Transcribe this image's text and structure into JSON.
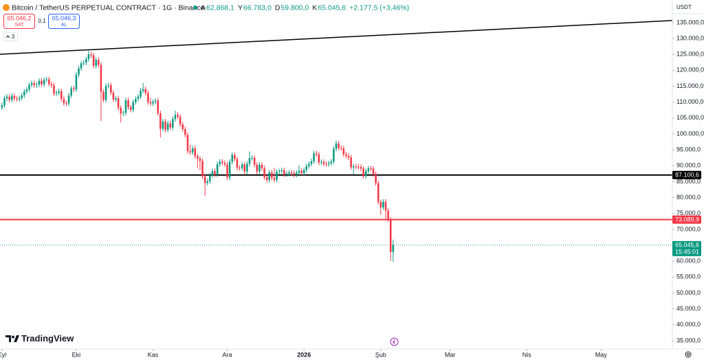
{
  "header": {
    "symbol": "Bitcoin / TetherUS PERPETUAL CONTRACT · 1G · Binance",
    "ohlc": [
      {
        "label": "A",
        "value": "62.868,1"
      },
      {
        "label": "Y",
        "value": "66.783,0"
      },
      {
        "label": "D",
        "value": "59.800,0"
      },
      {
        "label": "K",
        "value": "65.045,6"
      }
    ],
    "change": "+2.177,5 (+3,46%)",
    "sell": {
      "price": "65.046,2",
      "label": "SAT"
    },
    "spread": "0,1",
    "buy": {
      "price": "65.046,3",
      "label": "AL"
    },
    "indicators_count": "3",
    "currency": "USDT",
    "logo": "TradingView"
  },
  "chart_data": {
    "type": "candlestick",
    "up_color": "#089981",
    "down_color": "#f23645",
    "xlim": [
      -0.8,
      270.8
    ],
    "xticks": [
      {
        "value": 0,
        "label": "Eyl"
      },
      {
        "value": 30,
        "label": "Eki"
      },
      {
        "value": 61,
        "label": "Kas"
      },
      {
        "value": 91,
        "label": "Ara"
      },
      {
        "value": 122,
        "label": "2026"
      },
      {
        "value": 153,
        "label": "Şub"
      },
      {
        "value": 181,
        "label": "Mar"
      },
      {
        "value": 212,
        "label": "Nis"
      },
      {
        "value": 242,
        "label": "May"
      }
    ],
    "ylim": [
      32400,
      142100
    ],
    "yticks": [
      {
        "value": 135000,
        "label": "135.000,0"
      },
      {
        "value": 130000,
        "label": "130.000,0"
      },
      {
        "value": 125000,
        "label": "125.000,0"
      },
      {
        "value": 120000,
        "label": "120.000,0"
      },
      {
        "value": 115000,
        "label": "115.000,0"
      },
      {
        "value": 110000,
        "label": "110.000,0"
      },
      {
        "value": 105000,
        "label": "105.000,0"
      },
      {
        "value": 100000,
        "label": "100.000,0"
      },
      {
        "value": 95000,
        "label": "95.000,0"
      },
      {
        "value": 90000,
        "label": "90.000,0"
      },
      {
        "value": 85000,
        "label": "85.000,0"
      },
      {
        "value": 80000,
        "label": "80.000,0"
      },
      {
        "value": 75000,
        "label": "75.000,0"
      },
      {
        "value": 70000,
        "label": "70.000,0"
      },
      {
        "value": 60000,
        "label": "60.000,0"
      },
      {
        "value": 55000,
        "label": "55.000,0"
      },
      {
        "value": 50000,
        "label": "50.000,0"
      },
      {
        "value": 45000,
        "label": "45.000,0"
      },
      {
        "value": 40000,
        "label": "40.000,0"
      },
      {
        "value": 35000,
        "label": "35.000,0"
      }
    ],
    "grid": false,
    "open": [
      108300,
      109000,
      111200,
      111700,
      110700,
      112000,
      111100,
      110900,
      111300,
      112100,
      113300,
      114000,
      115400,
      116000,
      115300,
      115500,
      116700,
      115600,
      117000,
      117200,
      115700,
      115300,
      112700,
      112900,
      113400,
      111000,
      109700,
      109600,
      112100,
      114300,
      114000,
      118600,
      120600,
      122200,
      122400,
      123500,
      125000,
      124700,
      121400,
      123300,
      121700,
      113200,
      110700,
      115100,
      115300,
      113000,
      110800,
      111200,
      108200,
      106400,
      106600,
      110600,
      108400,
      107600,
      110000,
      111000,
      111700,
      113600,
      114100,
      112900,
      110000,
      109600,
      110100,
      110500,
      106500,
      101600,
      103900,
      101300,
      103300,
      102000,
      104700,
      106000,
      105400,
      103000,
      101500,
      99700,
      94600,
      94200,
      95500,
      93000,
      92200,
      91500,
      86600,
      84600,
      85100,
      87000,
      88300,
      87300,
      90500,
      91300,
      90900,
      90400,
      86300,
      91300,
      93400,
      92100,
      89400,
      89300,
      90400,
      88200,
      90600,
      92400,
      92500,
      90300,
      88200,
      90300,
      89200,
      86400,
      85500,
      87900,
      86200,
      85600,
      88100,
      88300,
      88600,
      87300,
      87500,
      87900,
      87700,
      87200,
      87800,
      88400,
      87700,
      88700,
      89900,
      90600,
      91400,
      93900,
      93600,
      91000,
      91200,
      90600,
      90500,
      90800,
      91300,
      95300,
      97000,
      95600,
      95500,
      93600,
      93100,
      92600,
      89500,
      89800,
      89700,
      89600,
      89100,
      86700,
      88300,
      89200,
      89100,
      87400,
      84500,
      78600,
      76900,
      78700,
      75900,
      73100,
      62868.1
    ],
    "high": [
      109800,
      112000,
      112500,
      112500,
      112800,
      112800,
      111900,
      112100,
      112900,
      114100,
      114800,
      116200,
      116800,
      116800,
      116300,
      117500,
      117500,
      117800,
      118000,
      118000,
      116500,
      116100,
      113700,
      114200,
      114200,
      111800,
      110500,
      112900,
      115100,
      115100,
      119400,
      121400,
      123000,
      123200,
      124300,
      126200,
      125800,
      125500,
      124100,
      124100,
      122500,
      114000,
      115900,
      116100,
      116100,
      113800,
      112000,
      112000,
      109000,
      107400,
      111400,
      111400,
      109200,
      110800,
      111800,
      112500,
      114400,
      116000,
      114900,
      113700,
      111400,
      110900,
      111300,
      111300,
      107300,
      104700,
      104700,
      104100,
      104100,
      105500,
      107300,
      106800,
      106200,
      103800,
      102300,
      100500,
      96600,
      96300,
      96300,
      93800,
      93000,
      92300,
      87400,
      85900,
      87800,
      89100,
      89100,
      91300,
      92100,
      92100,
      91700,
      91200,
      92100,
      94200,
      94200,
      92900,
      90200,
      91200,
      91200,
      91400,
      94500,
      93300,
      93300,
      91100,
      91100,
      91100,
      90000,
      87200,
      88700,
      88700,
      89400,
      88900,
      89100,
      89400,
      89400,
      88300,
      88700,
      88700,
      88500,
      88600,
      90200,
      89200,
      89500,
      90700,
      91400,
      92200,
      94700,
      94700,
      94400,
      92000,
      92000,
      91400,
      91600,
      92100,
      96100,
      97900,
      97800,
      96400,
      96300,
      94400,
      93900,
      93400,
      90600,
      90600,
      90500,
      90400,
      89900,
      89100,
      90000,
      90000,
      89900,
      88200,
      85300,
      79400,
      79500,
      79500,
      76700,
      73900,
      66783
    ],
    "low": [
      107500,
      108200,
      110400,
      109900,
      109900,
      110300,
      110100,
      110100,
      110500,
      111300,
      112500,
      113200,
      114600,
      114500,
      114500,
      114700,
      114800,
      114800,
      116200,
      114900,
      114500,
      111900,
      111900,
      112100,
      110200,
      108900,
      108800,
      108800,
      111300,
      113200,
      113200,
      117800,
      119800,
      121400,
      121600,
      122700,
      123900,
      120600,
      120600,
      120900,
      104000,
      109900,
      109900,
      114300,
      112200,
      110000,
      110000,
      107400,
      103600,
      105600,
      105800,
      107600,
      106800,
      106800,
      109200,
      110200,
      110900,
      112800,
      112100,
      109200,
      108800,
      108800,
      109300,
      105700,
      98900,
      100800,
      100500,
      100500,
      101200,
      101200,
      103900,
      104600,
      102200,
      100700,
      98900,
      93800,
      93400,
      93400,
      92200,
      89200,
      88600,
      85800,
      80600,
      83800,
      84300,
      86200,
      86500,
      86500,
      89700,
      90100,
      89600,
      85500,
      85500,
      90500,
      91300,
      88600,
      88500,
      88500,
      87400,
      87400,
      89800,
      91600,
      89500,
      87400,
      87400,
      88400,
      85600,
      84700,
      84700,
      85400,
      84800,
      84800,
      87300,
      87500,
      86500,
      86500,
      86700,
      86900,
      86400,
      86400,
      87000,
      86900,
      86900,
      87900,
      89100,
      89800,
      90600,
      92800,
      90200,
      90200,
      89800,
      89700,
      89700,
      90000,
      90500,
      94500,
      94800,
      94700,
      92800,
      92300,
      91800,
      88700,
      87300,
      88900,
      88800,
      88300,
      85900,
      85900,
      87500,
      88300,
      86600,
      83700,
      77800,
      74600,
      76100,
      72900,
      72300,
      60100,
      59800
    ],
    "close": [
      109000,
      111200,
      111700,
      110700,
      112000,
      111100,
      110900,
      111300,
      112100,
      113300,
      114000,
      115400,
      116000,
      115300,
      115500,
      116700,
      115600,
      117000,
      117200,
      115700,
      115300,
      112700,
      112900,
      113400,
      111000,
      109700,
      109600,
      112100,
      114300,
      114000,
      118600,
      120600,
      122200,
      122400,
      123500,
      125000,
      124700,
      121400,
      123300,
      121700,
      113200,
      110700,
      115100,
      115300,
      113000,
      110800,
      111200,
      108200,
      106400,
      106600,
      110600,
      108400,
      107600,
      110000,
      111000,
      111700,
      113600,
      114100,
      112900,
      110000,
      109600,
      110100,
      110500,
      106500,
      101600,
      103900,
      101300,
      103300,
      102000,
      104700,
      106000,
      105400,
      103000,
      101500,
      99700,
      94600,
      94200,
      95500,
      93000,
      92200,
      91500,
      86600,
      84600,
      85100,
      87000,
      88300,
      87300,
      90500,
      91300,
      90900,
      90400,
      86300,
      91300,
      93400,
      92100,
      89400,
      89300,
      90400,
      88200,
      90600,
      92400,
      92500,
      90300,
      88200,
      90300,
      89200,
      86400,
      85500,
      87900,
      86200,
      85600,
      88100,
      88300,
      88600,
      87300,
      87500,
      87900,
      87700,
      87200,
      87800,
      88400,
      87700,
      88700,
      89900,
      90600,
      91400,
      93900,
      93600,
      91000,
      91200,
      90600,
      90500,
      90800,
      91300,
      95300,
      97000,
      95600,
      95500,
      93600,
      93100,
      92600,
      89500,
      89800,
      89700,
      89600,
      89100,
      86700,
      88300,
      89200,
      89100,
      87400,
      84500,
      78600,
      76900,
      78700,
      75900,
      73100,
      62868.1,
      65045.6
    ],
    "trendline": {
      "x": [
        -0.8,
        270.8
      ],
      "y": [
        125050,
        135650
      ],
      "color": "#000000"
    },
    "levels": [
      {
        "value": 87100.6,
        "label": "87.100,6",
        "color": "#000000"
      },
      {
        "value": 73089.9,
        "label": "73.089,9",
        "color": "#f23645"
      }
    ],
    "last_price": {
      "value": 65045.6,
      "label": "65.045,6",
      "countdown": "15:45:01",
      "color": "#089981"
    }
  }
}
